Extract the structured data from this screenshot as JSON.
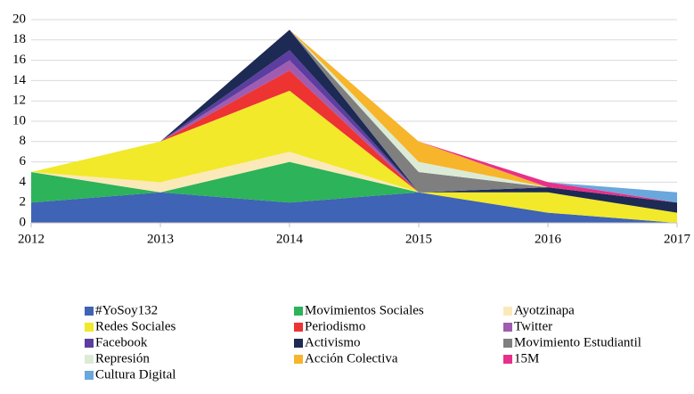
{
  "chart_data": {
    "type": "stacked_area",
    "x": [
      2012,
      2013,
      2014,
      2015,
      2016,
      2017
    ],
    "xlim": [
      2012,
      2017
    ],
    "xticks": [
      2012,
      2013,
      2014,
      2015,
      2016,
      2017
    ],
    "ylim": [
      0,
      20
    ],
    "yticks": [
      0,
      2,
      4,
      6,
      8,
      10,
      12,
      14,
      16,
      18,
      20
    ],
    "grid": true,
    "legend": "bottom",
    "series": [
      {
        "name": "#YoSoy132",
        "color": "#3f63b5",
        "values": [
          2,
          3,
          2,
          3,
          1,
          0
        ]
      },
      {
        "name": "Movimientos Sociales",
        "color": "#2db35a",
        "values": [
          3,
          0,
          4,
          0,
          0,
          0
        ]
      },
      {
        "name": "Ayotzinapa",
        "color": "#fbe9b9",
        "values": [
          0,
          1,
          1,
          0,
          0,
          0
        ]
      },
      {
        "name": "Redes Sociales",
        "color": "#f1e92a",
        "values": [
          0,
          4,
          6,
          0,
          2,
          1
        ]
      },
      {
        "name": "Periodismo",
        "color": "#ee3333",
        "values": [
          0,
          0,
          2,
          0,
          0,
          0
        ]
      },
      {
        "name": "Twitter",
        "color": "#a05cb0",
        "values": [
          0,
          0,
          1,
          0,
          0,
          0
        ]
      },
      {
        "name": "Facebook",
        "color": "#5b3ea0",
        "values": [
          0,
          0,
          1,
          0,
          0,
          0
        ]
      },
      {
        "name": "Activismo",
        "color": "#1c2a54",
        "values": [
          0,
          0,
          2,
          0,
          0.5,
          1
        ]
      },
      {
        "name": "Movimiento Estudiantil",
        "color": "#7f7f7f",
        "values": [
          0,
          0,
          0,
          2,
          0,
          0
        ]
      },
      {
        "name": "Represión",
        "color": "#dcebd5",
        "values": [
          0,
          0,
          0,
          1,
          0,
          0
        ]
      },
      {
        "name": "Acción Colectiva",
        "color": "#f7b52b",
        "values": [
          0,
          0,
          0,
          2,
          0,
          0
        ]
      },
      {
        "name": "15M",
        "color": "#e8308a",
        "values": [
          0,
          0,
          0,
          0,
          0.5,
          0
        ]
      },
      {
        "name": "Cultura Digital",
        "color": "#6aa7dc",
        "values": [
          0,
          0,
          0,
          0,
          0,
          1
        ]
      }
    ]
  }
}
